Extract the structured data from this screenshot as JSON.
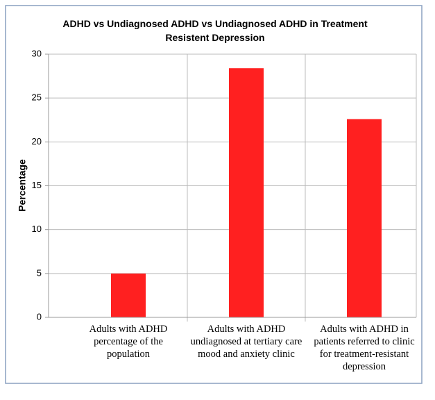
{
  "chart_data": {
    "type": "bar",
    "title": "ADHD vs Undiagnosed ADHD vs Undiagnosed ADHD in Treatment Resistent Depression",
    "y_label": "Percentage",
    "categories": [
      "Adults with ADHD percentage of the population",
      "Adults with ADHD undiagnosed at tertiary care mood and anxiety clinic",
      "Adults with ADHD in patients referred to clinic for treatment-resistant depression"
    ],
    "values": [
      5,
      28.4,
      22.6
    ],
    "color": "#ff2020",
    "ylim": [
      0,
      30
    ],
    "yticks": [
      0,
      5,
      10,
      15,
      20,
      25,
      30
    ],
    "grid": true
  }
}
